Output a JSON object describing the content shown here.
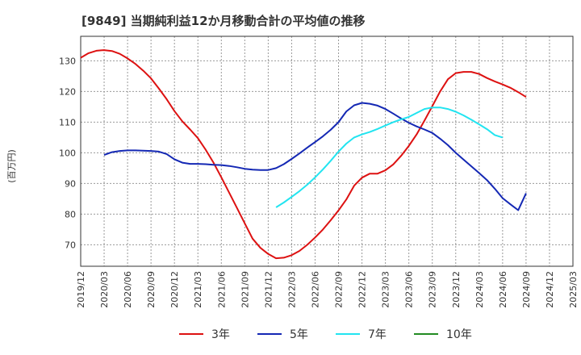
{
  "chart_data": {
    "type": "line",
    "title": "[9849]  当期純利益12か月移動合計の平均値の推移",
    "ylabel": "(百万円)",
    "xlabel": "",
    "ylim": [
      63,
      138
    ],
    "yticks": [
      70,
      80,
      90,
      100,
      110,
      120,
      130
    ],
    "x_ticks": [
      "2019/12",
      "2020/03",
      "2020/06",
      "2020/09",
      "2020/12",
      "2021/03",
      "2021/06",
      "2021/09",
      "2021/12",
      "2022/03",
      "2022/06",
      "2022/09",
      "2022/12",
      "2023/03",
      "2023/06",
      "2023/09",
      "2023/12",
      "2024/03",
      "2024/06",
      "2024/09",
      "2024/12",
      "2025/03"
    ],
    "grid": true,
    "legend_position": "bottom",
    "series": [
      {
        "name": "3年",
        "color": "#dd1111",
        "points": [
          [
            "2019/12",
            131
          ],
          [
            "2020/01",
            132.5
          ],
          [
            "2020/02",
            133.3
          ],
          [
            "2020/03",
            133.5
          ],
          [
            "2020/04",
            133.2
          ],
          [
            "2020/05",
            132.3
          ],
          [
            "2020/06",
            130.8
          ],
          [
            "2020/07",
            129
          ],
          [
            "2020/08",
            126.8
          ],
          [
            "2020/09",
            124.3
          ],
          [
            "2020/10",
            121
          ],
          [
            "2020/11",
            117.5
          ],
          [
            "2020/12",
            113.6
          ],
          [
            "2021/01",
            110.3
          ],
          [
            "2021/02",
            107.6
          ],
          [
            "2021/03",
            104.8
          ],
          [
            "2021/04",
            101
          ],
          [
            "2021/05",
            96.8
          ],
          [
            "2021/06",
            92
          ],
          [
            "2021/07",
            87
          ],
          [
            "2021/08",
            82
          ],
          [
            "2021/09",
            77
          ],
          [
            "2021/10",
            72
          ],
          [
            "2021/11",
            69
          ],
          [
            "2021/12",
            67
          ],
          [
            "2022/01",
            65.6
          ],
          [
            "2022/02",
            65.8
          ],
          [
            "2022/03",
            66.6
          ],
          [
            "2022/04",
            68
          ],
          [
            "2022/05",
            70
          ],
          [
            "2022/06",
            72.4
          ],
          [
            "2022/07",
            75
          ],
          [
            "2022/08",
            78
          ],
          [
            "2022/09",
            81.2
          ],
          [
            "2022/10",
            84.8
          ],
          [
            "2022/11",
            89.3
          ],
          [
            "2022/12",
            91.9
          ],
          [
            "2023/01",
            93.2
          ],
          [
            "2023/02",
            93.2
          ],
          [
            "2023/03",
            94.3
          ],
          [
            "2023/04",
            96.2
          ],
          [
            "2023/05",
            99
          ],
          [
            "2023/06",
            102.3
          ],
          [
            "2023/07",
            106
          ],
          [
            "2023/08",
            110.5
          ],
          [
            "2023/09",
            115.2
          ],
          [
            "2023/10",
            120
          ],
          [
            "2023/11",
            124
          ],
          [
            "2023/12",
            126
          ],
          [
            "2024/01",
            126.4
          ],
          [
            "2024/02",
            126.4
          ],
          [
            "2024/03",
            125.7
          ],
          [
            "2024/04",
            124.4
          ],
          [
            "2024/05",
            123.3
          ],
          [
            "2024/06",
            122.3
          ],
          [
            "2024/07",
            121.2
          ],
          [
            "2024/08",
            119.8
          ],
          [
            "2024/09",
            118.2
          ]
        ]
      },
      {
        "name": "5年",
        "color": "#1428b4",
        "points": [
          [
            "2020/03",
            99.3
          ],
          [
            "2020/04",
            100.2
          ],
          [
            "2020/05",
            100.6
          ],
          [
            "2020/06",
            100.8
          ],
          [
            "2020/07",
            100.8
          ],
          [
            "2020/08",
            100.7
          ],
          [
            "2020/09",
            100.6
          ],
          [
            "2020/10",
            100.4
          ],
          [
            "2020/11",
            99.6
          ],
          [
            "2020/12",
            97.9
          ],
          [
            "2021/01",
            96.8
          ],
          [
            "2021/02",
            96.4
          ],
          [
            "2021/03",
            96.4
          ],
          [
            "2021/04",
            96.3
          ],
          [
            "2021/05",
            96.1
          ],
          [
            "2021/06",
            96
          ],
          [
            "2021/07",
            95.7
          ],
          [
            "2021/08",
            95.3
          ],
          [
            "2021/09",
            94.8
          ],
          [
            "2021/10",
            94.5
          ],
          [
            "2021/11",
            94.4
          ],
          [
            "2021/12",
            94.4
          ],
          [
            "2022/01",
            95
          ],
          [
            "2022/02",
            96.3
          ],
          [
            "2022/03",
            98
          ],
          [
            "2022/04",
            99.8
          ],
          [
            "2022/05",
            101.7
          ],
          [
            "2022/06",
            103.5
          ],
          [
            "2022/07",
            105.4
          ],
          [
            "2022/08",
            107.5
          ],
          [
            "2022/09",
            110
          ],
          [
            "2022/10",
            113.5
          ],
          [
            "2022/11",
            115.5
          ],
          [
            "2022/12",
            116.3
          ],
          [
            "2023/01",
            116
          ],
          [
            "2023/02",
            115.4
          ],
          [
            "2023/03",
            114.3
          ],
          [
            "2023/04",
            112.8
          ],
          [
            "2023/05",
            111.2
          ],
          [
            "2023/06",
            109.8
          ],
          [
            "2023/07",
            108.6
          ],
          [
            "2023/08",
            107.6
          ],
          [
            "2023/09",
            106.5
          ],
          [
            "2023/10",
            104.6
          ],
          [
            "2023/11",
            102.5
          ],
          [
            "2023/12",
            100
          ],
          [
            "2024/01",
            97.8
          ],
          [
            "2024/02",
            95.6
          ],
          [
            "2024/03",
            93.4
          ],
          [
            "2024/04",
            91.1
          ],
          [
            "2024/05",
            88.3
          ],
          [
            "2024/06",
            85.2
          ],
          [
            "2024/07",
            83.2
          ],
          [
            "2024/08",
            81.3
          ],
          [
            "2024/09",
            86.8
          ]
        ]
      },
      {
        "name": "7年",
        "color": "#22e4f0",
        "points": [
          [
            "2022/01",
            82.2
          ],
          [
            "2022/02",
            83.8
          ],
          [
            "2022/03",
            85.6
          ],
          [
            "2022/04",
            87.5
          ],
          [
            "2022/05",
            89.6
          ],
          [
            "2022/06",
            92
          ],
          [
            "2022/07",
            94.6
          ],
          [
            "2022/08",
            97.4
          ],
          [
            "2022/09",
            100.4
          ],
          [
            "2022/10",
            103
          ],
          [
            "2022/11",
            105
          ],
          [
            "2022/12",
            106
          ],
          [
            "2023/01",
            106.8
          ],
          [
            "2023/02",
            107.8
          ],
          [
            "2023/03",
            108.9
          ],
          [
            "2023/04",
            110
          ],
          [
            "2023/05",
            110.9
          ],
          [
            "2023/06",
            111.7
          ],
          [
            "2023/07",
            113
          ],
          [
            "2023/08",
            114.3
          ],
          [
            "2023/09",
            114.8
          ],
          [
            "2023/10",
            114.8
          ],
          [
            "2023/11",
            114.3
          ],
          [
            "2023/12",
            113.4
          ],
          [
            "2024/01",
            112.2
          ],
          [
            "2024/02",
            110.8
          ],
          [
            "2024/03",
            109.3
          ],
          [
            "2024/04",
            107.7
          ],
          [
            "2024/05",
            105.8
          ],
          [
            "2024/06",
            105
          ]
        ]
      },
      {
        "name": "10年",
        "color": "#228b22",
        "points": []
      }
    ]
  }
}
